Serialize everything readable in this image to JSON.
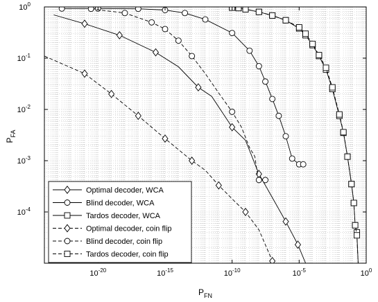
{
  "chart_data": {
    "type": "line",
    "x_scale": "log",
    "y_scale": "log",
    "xlim": [
      1e-24,
      1
    ],
    "ylim": [
      1e-05,
      1
    ],
    "xlabel": "P_FN",
    "ylabel": "P_FA",
    "grid": true,
    "legend_position": "bottom-left",
    "x_ticks": [
      {
        "base": "10",
        "exp": "-20",
        "value": 1e-20
      },
      {
        "base": "10",
        "exp": "-15",
        "value": 1e-15
      },
      {
        "base": "10",
        "exp": "-10",
        "value": 1e-10
      },
      {
        "base": "10",
        "exp": "-5",
        "value": 1e-05
      },
      {
        "base": "10",
        "exp": "0",
        "value": 1
      }
    ],
    "y_ticks": [
      {
        "base": "10",
        "exp": "0",
        "value": 1
      },
      {
        "base": "10",
        "exp": "-1",
        "value": 0.1
      },
      {
        "base": "10",
        "exp": "-2",
        "value": 0.01
      },
      {
        "base": "10",
        "exp": "-3",
        "value": 0.001
      },
      {
        "base": "10",
        "exp": "-4",
        "value": 0.0001
      }
    ],
    "series": [
      {
        "name": "Optimal decoder, WCA",
        "marker": "diamond",
        "dash": false,
        "points": [
          [
            5e-24,
            0.7
          ],
          [
            1e-21,
            0.47
          ],
          [
            4e-19,
            0.28
          ],
          [
            2e-16,
            0.13
          ],
          [
            1e-14,
            0.068
          ],
          [
            3e-13,
            0.027
          ],
          [
            3e-12,
            0.018
          ],
          [
            1e-10,
            0.0045
          ],
          [
            1e-09,
            0.0025
          ],
          [
            1e-08,
            0.00055
          ],
          [
            1e-07,
            0.00019
          ],
          [
            1e-06,
            6.5e-05
          ],
          [
            8e-06,
            2.3e-05
          ],
          [
            3e-05,
            1e-05
          ]
        ],
        "markers": [
          [
            1e-21,
            0.47
          ],
          [
            4e-19,
            0.28
          ],
          [
            2e-16,
            0.13
          ],
          [
            3e-13,
            0.027
          ],
          [
            1e-10,
            0.0045
          ],
          [
            1e-08,
            0.00055
          ],
          [
            1e-06,
            6.5e-05
          ],
          [
            8e-06,
            2.3e-05
          ]
        ]
      },
      {
        "name": "Blind decoder, WCA",
        "marker": "circle",
        "dash": false,
        "points": [
          [
            2e-23,
            0.93
          ],
          [
            1e-20,
            0.93
          ],
          [
            1e-17,
            0.92
          ],
          [
            1e-15,
            0.87
          ],
          [
            3e-14,
            0.76
          ],
          [
            1e-12,
            0.57
          ],
          [
            1e-10,
            0.31
          ],
          [
            2e-09,
            0.14
          ],
          [
            1e-08,
            0.07
          ],
          [
            3e-08,
            0.035
          ],
          [
            1e-07,
            0.016
          ],
          [
            3e-07,
            0.0075
          ],
          [
            1e-06,
            0.003
          ],
          [
            3e-06,
            0.0011
          ],
          [
            1e-05,
            0.00085
          ],
          [
            2e-05,
            0.00085
          ]
        ],
        "markers": [
          [
            2e-23,
            0.93
          ],
          [
            1e-20,
            0.93
          ],
          [
            1e-17,
            0.92
          ],
          [
            1e-15,
            0.87
          ],
          [
            3e-14,
            0.76
          ],
          [
            1e-12,
            0.57
          ],
          [
            1e-10,
            0.31
          ],
          [
            2e-09,
            0.14
          ],
          [
            1e-08,
            0.07
          ],
          [
            3e-08,
            0.035
          ],
          [
            1e-07,
            0.016
          ],
          [
            3e-07,
            0.0075
          ],
          [
            1e-06,
            0.003
          ],
          [
            3e-06,
            0.0011
          ],
          [
            1e-05,
            0.00085
          ],
          [
            2e-05,
            0.00085
          ]
        ]
      },
      {
        "name": "Tardos decoder, WCA",
        "marker": "square",
        "dash": false,
        "points": [
          [
            1e-10,
            0.97
          ],
          [
            3e-10,
            0.95
          ],
          [
            1e-09,
            0.9
          ],
          [
            1e-08,
            0.8
          ],
          [
            1e-07,
            0.68
          ],
          [
            1e-06,
            0.55
          ],
          [
            1e-05,
            0.38
          ],
          [
            3e-05,
            0.28
          ],
          [
            0.0001,
            0.18
          ],
          [
            0.0003,
            0.11
          ],
          [
            0.001,
            0.06
          ],
          [
            0.003,
            0.025
          ],
          [
            0.01,
            0.0075
          ],
          [
            0.02,
            0.0035
          ],
          [
            0.04,
            0.0012
          ],
          [
            0.08,
            0.00035
          ],
          [
            0.12,
            0.00015
          ],
          [
            0.15,
            5.5e-05
          ],
          [
            0.2,
            4e-05
          ],
          [
            0.25,
            1e-05
          ]
        ],
        "markers": [
          [
            1e-10,
            0.97
          ],
          [
            3e-10,
            0.95
          ],
          [
            1e-09,
            0.9
          ],
          [
            1e-08,
            0.8
          ],
          [
            1e-07,
            0.68
          ],
          [
            1e-06,
            0.55
          ],
          [
            1e-05,
            0.38
          ],
          [
            3e-05,
            0.28
          ],
          [
            0.0001,
            0.18
          ],
          [
            0.0003,
            0.11
          ],
          [
            0.001,
            0.06
          ],
          [
            0.003,
            0.025
          ],
          [
            0.01,
            0.0075
          ],
          [
            0.02,
            0.0035
          ],
          [
            0.04,
            0.0012
          ],
          [
            0.08,
            0.00035
          ],
          [
            0.12,
            0.00015
          ],
          [
            0.15,
            5.5e-05
          ],
          [
            0.2,
            4e-05
          ]
        ]
      },
      {
        "name": "Optimal decoder, coin flip",
        "marker": "diamond",
        "dash": true,
        "points": [
          [
            1e-24,
            0.11
          ],
          [
            1e-21,
            0.05
          ],
          [
            1e-19,
            0.02
          ],
          [
            1e-17,
            0.0075
          ],
          [
            1e-15,
            0.0027
          ],
          [
            1e-13,
            0.001
          ],
          [
            1e-12,
            0.00065
          ],
          [
            1e-11,
            0.00033
          ],
          [
            1e-10,
            0.00018
          ],
          [
            1e-09,
            0.0001
          ],
          [
            1e-08,
            4.5e-05
          ],
          [
            1e-07,
            1.1e-05
          ]
        ],
        "markers": [
          [
            1e-21,
            0.05
          ],
          [
            1e-19,
            0.02
          ],
          [
            1e-17,
            0.0075
          ],
          [
            1e-15,
            0.0027
          ],
          [
            1e-13,
            0.001
          ],
          [
            1e-11,
            0.00033
          ],
          [
            1e-09,
            0.0001
          ],
          [
            1e-07,
            1.1e-05
          ]
        ]
      },
      {
        "name": "Blind decoder, coin flip",
        "marker": "circle",
        "dash": true,
        "points": [
          [
            3e-21,
            0.92
          ],
          [
            1e-20,
            0.88
          ],
          [
            1e-18,
            0.76
          ],
          [
            1e-16,
            0.5
          ],
          [
            1e-15,
            0.37
          ],
          [
            1e-14,
            0.22
          ],
          [
            1e-13,
            0.11
          ],
          [
            1e-12,
            0.05
          ],
          [
            1e-11,
            0.021
          ],
          [
            1e-10,
            0.009
          ],
          [
            5e-10,
            0.0045
          ],
          [
            2e-09,
            0.0018
          ],
          [
            5e-09,
            0.0012
          ],
          [
            8e-09,
            0.0005
          ],
          [
            1e-08,
            0.00042
          ],
          [
            3e-08,
            0.00042
          ],
          [
            5e-08,
            0.00044
          ]
        ],
        "markers": [
          [
            3e-21,
            0.92
          ],
          [
            1e-18,
            0.76
          ],
          [
            1e-16,
            0.5
          ],
          [
            1e-15,
            0.37
          ],
          [
            1e-14,
            0.22
          ],
          [
            1e-13,
            0.11
          ],
          [
            1e-10,
            0.009
          ],
          [
            1e-08,
            0.00042
          ],
          [
            3e-08,
            0.00042
          ]
        ]
      },
      {
        "name": "Tardos decoder, coin flip",
        "marker": "square",
        "dash": true,
        "points": [
          [
            1e-10,
            0.97
          ],
          [
            3e-10,
            0.95
          ],
          [
            1e-09,
            0.9
          ],
          [
            1e-08,
            0.8
          ],
          [
            1e-07,
            0.68
          ],
          [
            1e-06,
            0.55
          ],
          [
            1e-05,
            0.4
          ],
          [
            3e-05,
            0.3
          ],
          [
            0.0001,
            0.19
          ],
          [
            0.0003,
            0.115
          ],
          [
            0.001,
            0.065
          ],
          [
            0.003,
            0.027
          ],
          [
            0.01,
            0.008
          ],
          [
            0.02,
            0.0036
          ],
          [
            0.04,
            0.0012
          ],
          [
            0.08,
            0.00035
          ],
          [
            0.12,
            0.00015
          ],
          [
            0.15,
            5.5e-05
          ],
          [
            0.2,
            3.5e-05
          ],
          [
            0.25,
            1e-05
          ]
        ],
        "markers": [
          [
            1e-10,
            0.97
          ],
          [
            3e-10,
            0.95
          ],
          [
            1e-09,
            0.9
          ],
          [
            1e-08,
            0.8
          ],
          [
            1e-07,
            0.68
          ],
          [
            1e-06,
            0.55
          ],
          [
            1e-05,
            0.4
          ],
          [
            3e-05,
            0.3
          ],
          [
            0.0001,
            0.19
          ],
          [
            0.0003,
            0.115
          ],
          [
            0.001,
            0.065
          ],
          [
            0.003,
            0.027
          ],
          [
            0.01,
            0.008
          ],
          [
            0.02,
            0.0036
          ],
          [
            0.04,
            0.0012
          ],
          [
            0.08,
            0.00035
          ],
          [
            0.12,
            0.00015
          ],
          [
            0.15,
            5.5e-05
          ],
          [
            0.2,
            3.5e-05
          ]
        ]
      }
    ]
  }
}
